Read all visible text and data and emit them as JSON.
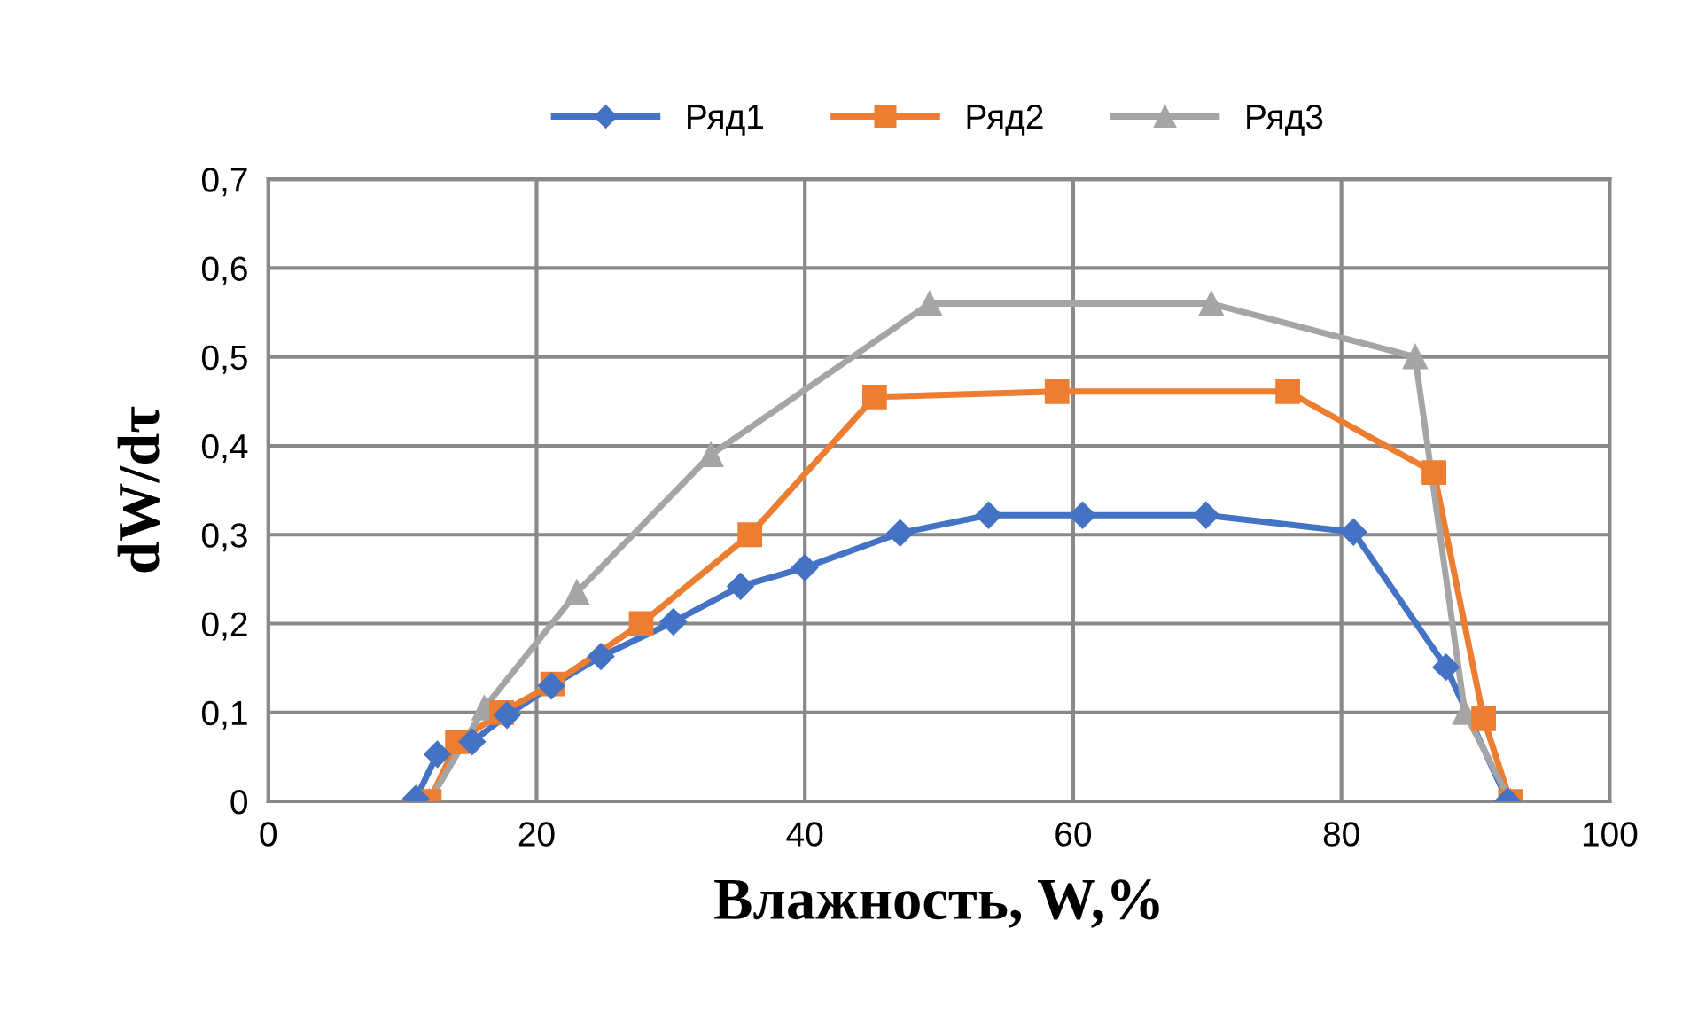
{
  "chart_data": {
    "type": "line",
    "xlabel": "Влажность, W,%",
    "ylabel": "dW/dτ",
    "xlim": [
      0,
      100
    ],
    "xticks": [
      0,
      20,
      40,
      60,
      80,
      100
    ],
    "ylim": [
      0,
      0.7
    ],
    "yticks": [
      0,
      {
        "value": 0.1,
        "label": "0,1"
      },
      {
        "value": 0.2,
        "label": "0,2"
      },
      {
        "value": 0.3,
        "label": "0,3"
      },
      {
        "value": 0.4,
        "label": "0,4"
      },
      {
        "value": 0.5,
        "label": "0,5"
      },
      {
        "value": 0.6,
        "label": "0,6"
      },
      {
        "value": 0.7,
        "label": "0,7"
      }
    ],
    "grid": true,
    "legend": "top",
    "series": [
      {
        "name": "Ряд1",
        "color": "#4472c4",
        "marker": "diamond",
        "x": [
          11.0,
          12.6,
          15.2,
          17.8,
          21.1,
          24.8,
          30.2,
          35.2,
          40.0,
          47.1,
          53.7,
          60.7,
          69.9,
          80.9,
          87.8,
          92.4
        ],
        "values": [
          0.003,
          0.053,
          0.067,
          0.097,
          0.13,
          0.163,
          0.202,
          0.242,
          0.263,
          0.302,
          0.322,
          0.322,
          0.322,
          0.303,
          0.151,
          0
        ]
      },
      {
        "name": "Ряд2",
        "color": "#ed7d31",
        "marker": "square",
        "x": [
          12.0,
          14.1,
          17.4,
          21.2,
          27.8,
          35.9,
          45.2,
          58.8,
          76.0,
          86.9,
          90.6,
          92.6
        ],
        "values": [
          0,
          0.067,
          0.1,
          0.132,
          0.2,
          0.3,
          0.455,
          0.461,
          0.461,
          0.37,
          0.093,
          0
        ]
      },
      {
        "name": "Ряд3",
        "color": "#a5a5a5",
        "marker": "triangle",
        "x": [
          12.0,
          16.1,
          23.0,
          33.0,
          49.3,
          70.3,
          85.5,
          89.2,
          92.6
        ],
        "values": [
          0,
          0.105,
          0.235,
          0.39,
          0.56,
          0.56,
          0.5,
          0.1,
          0
        ]
      }
    ]
  }
}
